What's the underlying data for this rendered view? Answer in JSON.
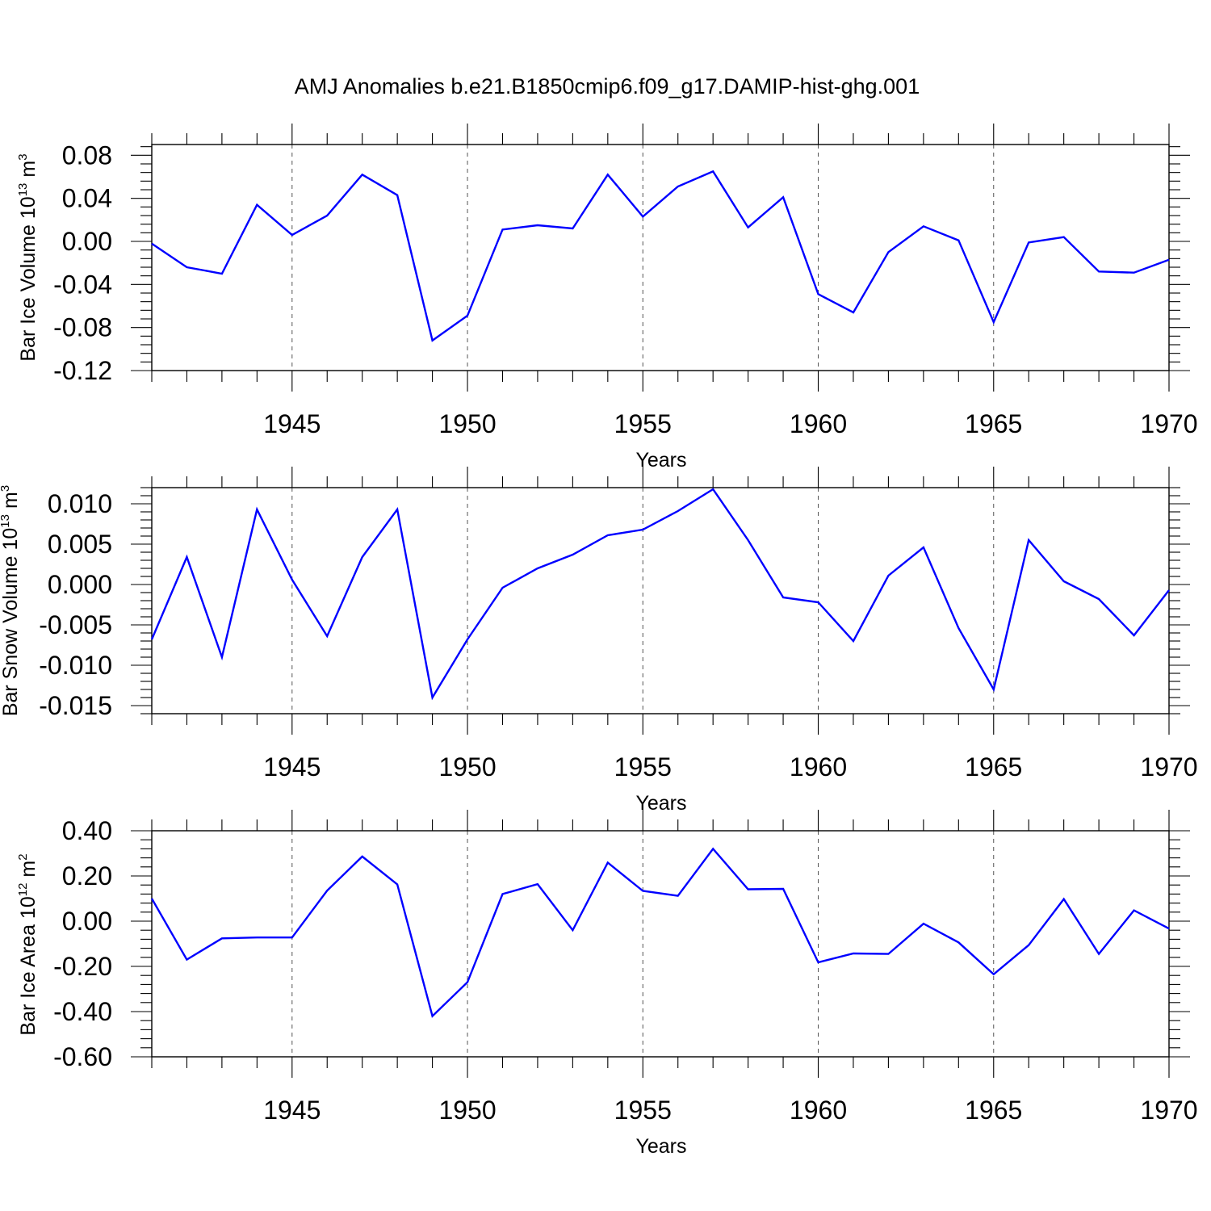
{
  "figure": {
    "title": "AMJ Anomalies b.e21.B1850cmip6.f09_g17.DAMIP-hist-ghg.001",
    "line_color": "#0000ff",
    "grid": "dashed vertical at major x ticks"
  },
  "chart_data": [
    {
      "type": "line",
      "name": "ice-volume",
      "ylabel": "Bar Ice Volume 10",
      "ylabel_exp": "13",
      "ylabel_unit": "m",
      "ylabel_unit_exp": "3",
      "xlabel": "Years",
      "xlim": [
        1941,
        1970
      ],
      "ylim": [
        -0.12,
        0.09
      ],
      "xticks": [
        "1945",
        "1950",
        "1955",
        "1960",
        "1965",
        "1970"
      ],
      "yticks": [
        "0.08",
        "0.04",
        "0.00",
        "-0.04",
        "-0.08",
        "-0.12"
      ],
      "x": [
        1941,
        1942,
        1943,
        1944,
        1945,
        1946,
        1947,
        1948,
        1949,
        1950,
        1951,
        1952,
        1953,
        1954,
        1955,
        1956,
        1957,
        1958,
        1959,
        1960,
        1961,
        1962,
        1963,
        1964,
        1965,
        1966,
        1967,
        1968,
        1969,
        1970
      ],
      "values": [
        -0.002,
        -0.024,
        -0.03,
        0.034,
        0.006,
        0.024,
        0.062,
        0.043,
        -0.092,
        -0.069,
        0.011,
        0.015,
        0.012,
        0.062,
        0.023,
        0.051,
        0.065,
        0.013,
        0.041,
        -0.049,
        -0.066,
        -0.01,
        0.014,
        0.001,
        -0.075,
        -0.001,
        0.004,
        -0.028,
        -0.029,
        -0.017
      ]
    },
    {
      "type": "line",
      "name": "snow-volume",
      "ylabel": "Bar Snow Volume 10",
      "ylabel_exp": "13",
      "ylabel_unit": "m",
      "ylabel_unit_exp": "3",
      "xlabel": "Years",
      "xlim": [
        1941,
        1970
      ],
      "ylim": [
        -0.016,
        0.012
      ],
      "xticks": [
        "1945",
        "1950",
        "1955",
        "1960",
        "1965",
        "1970"
      ],
      "yticks": [
        "0.010",
        "0.005",
        "0.000",
        "-0.005",
        "-0.010",
        "-0.015"
      ],
      "x": [
        1941,
        1942,
        1943,
        1944,
        1945,
        1946,
        1947,
        1948,
        1949,
        1950,
        1951,
        1952,
        1953,
        1954,
        1955,
        1956,
        1957,
        1958,
        1959,
        1960,
        1961,
        1962,
        1963,
        1964,
        1965,
        1966,
        1967,
        1968,
        1969,
        1970
      ],
      "values": [
        -0.0068,
        0.0034,
        -0.009,
        0.0093,
        0.0006,
        -0.0064,
        0.0034,
        0.0093,
        -0.014,
        -0.0068,
        -0.0004,
        0.002,
        0.0037,
        0.0061,
        0.0068,
        0.0091,
        0.0118,
        0.0055,
        -0.0016,
        -0.0022,
        -0.007,
        0.0011,
        0.0046,
        -0.0054,
        -0.013,
        0.0055,
        0.0004,
        -0.0018,
        -0.0063,
        -0.0007
      ]
    },
    {
      "type": "line",
      "name": "ice-area",
      "ylabel": "Bar Ice Area 10",
      "ylabel_exp": "12",
      "ylabel_unit": "m",
      "ylabel_unit_exp": "2",
      "xlabel": "Years",
      "xlim": [
        1941,
        1970
      ],
      "ylim": [
        -0.6,
        0.4
      ],
      "xticks": [
        "1945",
        "1950",
        "1955",
        "1960",
        "1965",
        "1970"
      ],
      "yticks": [
        "0.40",
        "0.20",
        "0.00",
        "-0.20",
        "-0.40",
        "-0.60"
      ],
      "x": [
        1941,
        1942,
        1943,
        1944,
        1945,
        1946,
        1947,
        1948,
        1949,
        1950,
        1951,
        1952,
        1953,
        1954,
        1955,
        1956,
        1957,
        1958,
        1959,
        1960,
        1961,
        1962,
        1963,
        1964,
        1965,
        1966,
        1967,
        1968,
        1969,
        1970
      ],
      "values": [
        0.1,
        -0.17,
        -0.076,
        -0.072,
        -0.072,
        0.135,
        0.286,
        0.163,
        -0.42,
        -0.27,
        0.12,
        0.164,
        -0.04,
        0.259,
        0.134,
        0.112,
        0.32,
        0.141,
        0.143,
        -0.182,
        -0.143,
        -0.145,
        -0.011,
        -0.094,
        -0.235,
        -0.106,
        0.098,
        -0.145,
        0.048,
        -0.033
      ]
    }
  ]
}
